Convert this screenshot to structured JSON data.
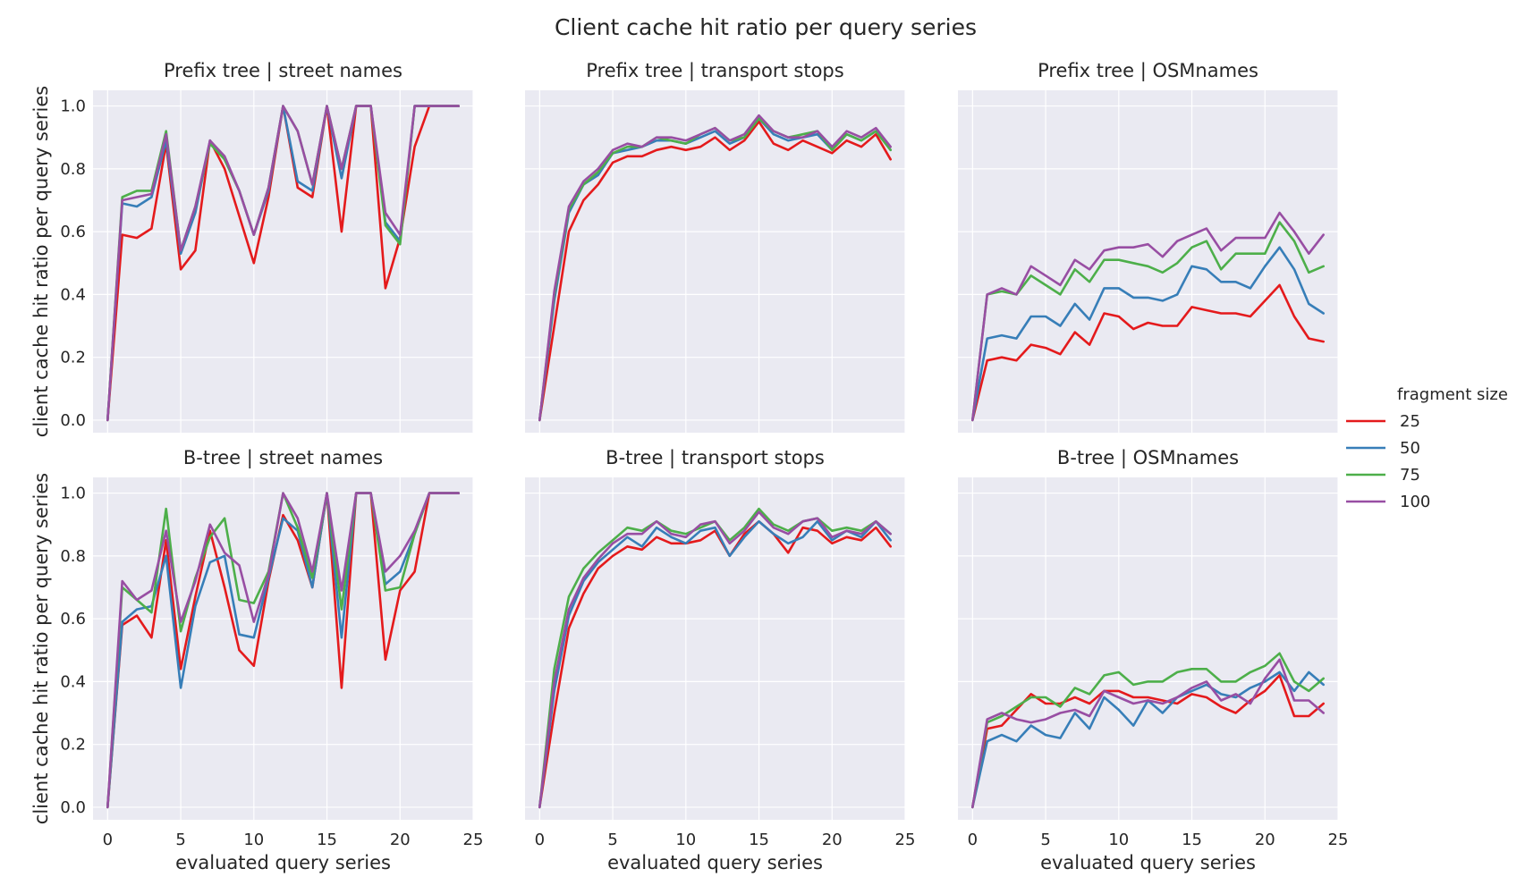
{
  "chart_data": {
    "type": "line",
    "title": "Client cache hit ratio per query series",
    "xlabel": "evaluated query series",
    "ylabel": "client cache hit ratio per query series",
    "xlim": [
      -1,
      25
    ],
    "ylim": [
      -0.04,
      1.05
    ],
    "xticks": [
      "0",
      "5",
      "10",
      "15",
      "20",
      "25"
    ],
    "yticks": [
      "0.0",
      "0.2",
      "0.4",
      "0.6",
      "0.8",
      "1.0"
    ],
    "grid": true,
    "legend": {
      "title": "fragment size",
      "placement": "right",
      "entries": [
        {
          "label": "25",
          "color": "#e41a1c"
        },
        {
          "label": "50",
          "color": "#377eb8"
        },
        {
          "label": "75",
          "color": "#4daf4a"
        },
        {
          "label": "100",
          "color": "#984ea3"
        }
      ]
    },
    "x": [
      0,
      1,
      2,
      3,
      4,
      5,
      6,
      7,
      8,
      9,
      10,
      11,
      12,
      13,
      14,
      15,
      16,
      17,
      18,
      19,
      20,
      21,
      22,
      23,
      24
    ],
    "panels": [
      {
        "title_left": "Prefix tree",
        "separator": "|",
        "title_right": "street names",
        "series": [
          {
            "name": "25",
            "values": [
              0,
              0.59,
              0.58,
              0.61,
              0.88,
              0.48,
              0.54,
              0.89,
              0.8,
              0.65,
              0.5,
              0.71,
              1.0,
              0.74,
              0.71,
              1.0,
              0.6,
              1.0,
              1.0,
              0.42,
              0.58,
              0.87,
              1.0,
              1.0,
              1.0
            ]
          },
          {
            "name": "50",
            "values": [
              0,
              0.69,
              0.68,
              0.71,
              0.89,
              0.53,
              0.66,
              0.89,
              0.83,
              0.73,
              0.59,
              0.73,
              1.0,
              0.76,
              0.73,
              1.0,
              0.77,
              1.0,
              1.0,
              0.63,
              0.57,
              1.0,
              1.0,
              1.0,
              1.0
            ]
          },
          {
            "name": "75",
            "values": [
              0,
              0.71,
              0.73,
              0.73,
              0.92,
              0.54,
              0.68,
              0.88,
              0.83,
              0.73,
              0.59,
              0.74,
              1.0,
              0.92,
              0.75,
              1.0,
              0.8,
              1.0,
              1.0,
              0.62,
              0.56,
              1.0,
              1.0,
              1.0,
              1.0
            ]
          },
          {
            "name": "100",
            "values": [
              0,
              0.7,
              0.71,
              0.72,
              0.91,
              0.54,
              0.68,
              0.89,
              0.84,
              0.73,
              0.59,
              0.74,
              1.0,
              0.92,
              0.75,
              1.0,
              0.8,
              1.0,
              1.0,
              0.66,
              0.59,
              1.0,
              1.0,
              1.0,
              1.0
            ]
          }
        ]
      },
      {
        "title_left": "Prefix tree",
        "separator": "|",
        "title_right": "transport stops",
        "series": [
          {
            "name": "25",
            "values": [
              0,
              0.3,
              0.6,
              0.7,
              0.75,
              0.82,
              0.84,
              0.84,
              0.86,
              0.87,
              0.86,
              0.87,
              0.9,
              0.86,
              0.89,
              0.95,
              0.88,
              0.86,
              0.89,
              0.87,
              0.85,
              0.89,
              0.87,
              0.91,
              0.83
            ]
          },
          {
            "name": "50",
            "values": [
              0,
              0.38,
              0.66,
              0.75,
              0.78,
              0.85,
              0.86,
              0.87,
              0.89,
              0.89,
              0.88,
              0.9,
              0.92,
              0.88,
              0.9,
              0.96,
              0.91,
              0.89,
              0.9,
              0.91,
              0.86,
              0.91,
              0.89,
              0.92,
              0.86
            ]
          },
          {
            "name": "75",
            "values": [
              0,
              0.4,
              0.67,
              0.75,
              0.79,
              0.85,
              0.87,
              0.87,
              0.9,
              0.89,
              0.88,
              0.91,
              0.93,
              0.89,
              0.9,
              0.96,
              0.92,
              0.9,
              0.91,
              0.92,
              0.86,
              0.91,
              0.89,
              0.92,
              0.86
            ]
          },
          {
            "name": "100",
            "values": [
              0,
              0.41,
              0.68,
              0.76,
              0.8,
              0.86,
              0.88,
              0.87,
              0.9,
              0.9,
              0.89,
              0.91,
              0.93,
              0.89,
              0.91,
              0.97,
              0.92,
              0.9,
              0.9,
              0.92,
              0.87,
              0.92,
              0.9,
              0.93,
              0.87
            ]
          }
        ]
      },
      {
        "title_left": "Prefix tree",
        "separator": "|",
        "title_right": "OSMnames",
        "series": [
          {
            "name": "25",
            "values": [
              0,
              0.19,
              0.2,
              0.19,
              0.24,
              0.23,
              0.21,
              0.28,
              0.24,
              0.34,
              0.33,
              0.29,
              0.31,
              0.3,
              0.3,
              0.36,
              0.35,
              0.34,
              0.34,
              0.33,
              0.38,
              0.43,
              0.33,
              0.26,
              0.25
            ]
          },
          {
            "name": "50",
            "values": [
              0,
              0.26,
              0.27,
              0.26,
              0.33,
              0.33,
              0.3,
              0.37,
              0.32,
              0.42,
              0.42,
              0.39,
              0.39,
              0.38,
              0.4,
              0.49,
              0.48,
              0.44,
              0.44,
              0.42,
              0.49,
              0.55,
              0.48,
              0.37,
              0.34
            ]
          },
          {
            "name": "75",
            "values": [
              0,
              0.4,
              0.41,
              0.4,
              0.46,
              0.43,
              0.4,
              0.48,
              0.44,
              0.51,
              0.51,
              0.5,
              0.49,
              0.47,
              0.5,
              0.55,
              0.57,
              0.48,
              0.53,
              0.53,
              0.53,
              0.63,
              0.57,
              0.47,
              0.49
            ]
          },
          {
            "name": "100",
            "values": [
              0,
              0.4,
              0.42,
              0.4,
              0.49,
              0.46,
              0.43,
              0.51,
              0.48,
              0.54,
              0.55,
              0.55,
              0.56,
              0.52,
              0.57,
              0.59,
              0.61,
              0.54,
              0.58,
              0.58,
              0.58,
              0.66,
              0.6,
              0.53,
              0.59
            ]
          }
        ]
      },
      {
        "title_left": "B-tree",
        "separator": "|",
        "title_right": "street names",
        "series": [
          {
            "name": "25",
            "values": [
              0,
              0.58,
              0.61,
              0.54,
              0.85,
              0.44,
              0.67,
              0.88,
              0.7,
              0.5,
              0.45,
              0.72,
              0.93,
              0.85,
              0.7,
              1.0,
              0.38,
              1.0,
              1.0,
              0.47,
              0.69,
              0.75,
              1.0,
              1.0,
              1.0
            ]
          },
          {
            "name": "50",
            "values": [
              0,
              0.59,
              0.63,
              0.64,
              0.8,
              0.38,
              0.64,
              0.78,
              0.8,
              0.55,
              0.54,
              0.73,
              0.92,
              0.88,
              0.7,
              1.0,
              0.54,
              1.0,
              1.0,
              0.71,
              0.75,
              0.87,
              1.0,
              1.0,
              1.0
            ]
          },
          {
            "name": "75",
            "values": [
              0,
              0.7,
              0.66,
              0.62,
              0.95,
              0.56,
              0.73,
              0.86,
              0.92,
              0.66,
              0.65,
              0.75,
              1.0,
              0.89,
              0.73,
              1.0,
              0.63,
              1.0,
              1.0,
              0.69,
              0.7,
              0.87,
              1.0,
              1.0,
              1.0
            ]
          },
          {
            "name": "100",
            "values": [
              0,
              0.72,
              0.66,
              0.69,
              0.88,
              0.59,
              0.72,
              0.9,
              0.81,
              0.77,
              0.59,
              0.74,
              1.0,
              0.92,
              0.75,
              1.0,
              0.69,
              1.0,
              1.0,
              0.75,
              0.8,
              0.88,
              1.0,
              1.0,
              1.0
            ]
          }
        ]
      },
      {
        "title_left": "B-tree",
        "separator": "|",
        "title_right": "transport stops",
        "series": [
          {
            "name": "25",
            "values": [
              0,
              0.3,
              0.57,
              0.68,
              0.76,
              0.8,
              0.83,
              0.82,
              0.86,
              0.84,
              0.84,
              0.85,
              0.88,
              0.8,
              0.87,
              0.91,
              0.87,
              0.81,
              0.89,
              0.88,
              0.84,
              0.86,
              0.85,
              0.89,
              0.83
            ]
          },
          {
            "name": "50",
            "values": [
              0,
              0.37,
              0.61,
              0.72,
              0.78,
              0.82,
              0.86,
              0.83,
              0.89,
              0.86,
              0.84,
              0.88,
              0.89,
              0.8,
              0.86,
              0.91,
              0.87,
              0.84,
              0.86,
              0.91,
              0.85,
              0.88,
              0.86,
              0.91,
              0.85
            ]
          },
          {
            "name": "75",
            "values": [
              0,
              0.44,
              0.67,
              0.76,
              0.81,
              0.85,
              0.89,
              0.88,
              0.91,
              0.88,
              0.87,
              0.89,
              0.91,
              0.85,
              0.89,
              0.95,
              0.9,
              0.88,
              0.91,
              0.92,
              0.88,
              0.89,
              0.88,
              0.91,
              0.87
            ]
          },
          {
            "name": "100",
            "values": [
              0,
              0.4,
              0.63,
              0.73,
              0.79,
              0.84,
              0.87,
              0.87,
              0.91,
              0.87,
              0.86,
              0.9,
              0.91,
              0.84,
              0.88,
              0.94,
              0.89,
              0.87,
              0.91,
              0.92,
              0.86,
              0.88,
              0.87,
              0.91,
              0.87
            ]
          }
        ]
      },
      {
        "title_left": "B-tree",
        "separator": "|",
        "title_right": "OSMnames",
        "series": [
          {
            "name": "25",
            "values": [
              0,
              0.25,
              0.26,
              0.31,
              0.36,
              0.33,
              0.33,
              0.35,
              0.33,
              0.37,
              0.37,
              0.35,
              0.35,
              0.34,
              0.33,
              0.36,
              0.35,
              0.32,
              0.3,
              0.34,
              0.37,
              0.42,
              0.29,
              0.29,
              0.33
            ]
          },
          {
            "name": "50",
            "values": [
              0,
              0.21,
              0.23,
              0.21,
              0.26,
              0.23,
              0.22,
              0.3,
              0.25,
              0.35,
              0.31,
              0.26,
              0.34,
              0.3,
              0.35,
              0.37,
              0.39,
              0.36,
              0.35,
              0.38,
              0.4,
              0.43,
              0.37,
              0.43,
              0.39
            ]
          },
          {
            "name": "75",
            "values": [
              0,
              0.27,
              0.29,
              0.32,
              0.35,
              0.35,
              0.32,
              0.38,
              0.36,
              0.42,
              0.43,
              0.39,
              0.4,
              0.4,
              0.43,
              0.44,
              0.44,
              0.4,
              0.4,
              0.43,
              0.45,
              0.49,
              0.4,
              0.37,
              0.41
            ]
          },
          {
            "name": "100",
            "values": [
              0,
              0.28,
              0.3,
              0.28,
              0.27,
              0.28,
              0.3,
              0.31,
              0.29,
              0.37,
              0.35,
              0.33,
              0.34,
              0.33,
              0.35,
              0.38,
              0.4,
              0.34,
              0.36,
              0.33,
              0.41,
              0.47,
              0.34,
              0.34,
              0.3
            ]
          }
        ]
      }
    ]
  }
}
